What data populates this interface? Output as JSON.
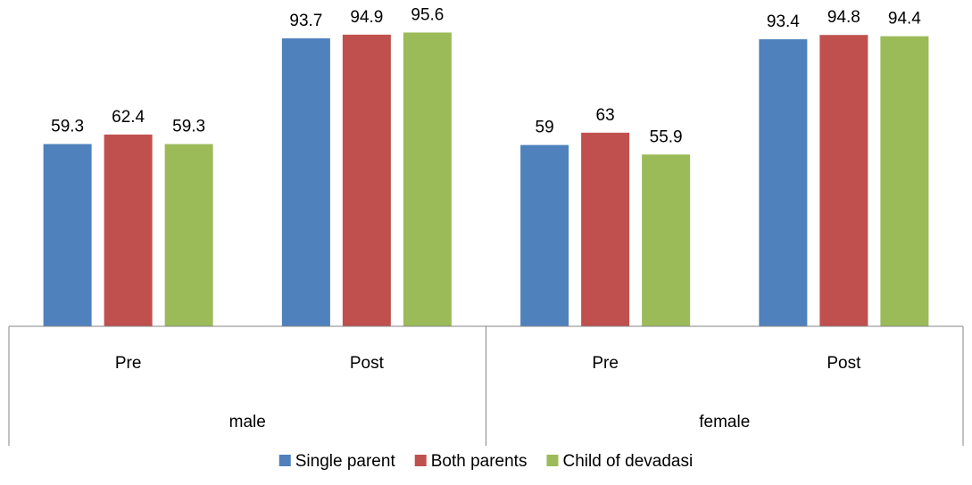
{
  "chart_data": {
    "type": "bar",
    "groups": [
      {
        "label": "male",
        "categories": [
          "Pre",
          "Post"
        ]
      },
      {
        "label": "female",
        "categories": [
          "Pre",
          "Post"
        ]
      }
    ],
    "categories": [
      "Pre",
      "Post",
      "Pre",
      "Post"
    ],
    "series": [
      {
        "name": "Single parent",
        "color": "#4F81BD",
        "values": [
          59.3,
          93.7,
          59,
          93.4
        ]
      },
      {
        "name": "Both parents",
        "color": "#C0504D",
        "values": [
          62.4,
          94.9,
          63,
          94.8
        ]
      },
      {
        "name": "Child of devadasi",
        "color": "#9BBB59",
        "values": [
          59.3,
          95.6,
          55.9,
          94.4
        ]
      }
    ],
    "data_labels": [
      [
        "59.3",
        "93.7",
        "59",
        "93.4"
      ],
      [
        "62.4",
        "94.9",
        "63",
        "94.8"
      ],
      [
        "59.3",
        "95.6",
        "55.9",
        "94.4"
      ]
    ],
    "ylim": [
      0,
      100
    ],
    "grid": false,
    "legend_position": "bottom"
  }
}
